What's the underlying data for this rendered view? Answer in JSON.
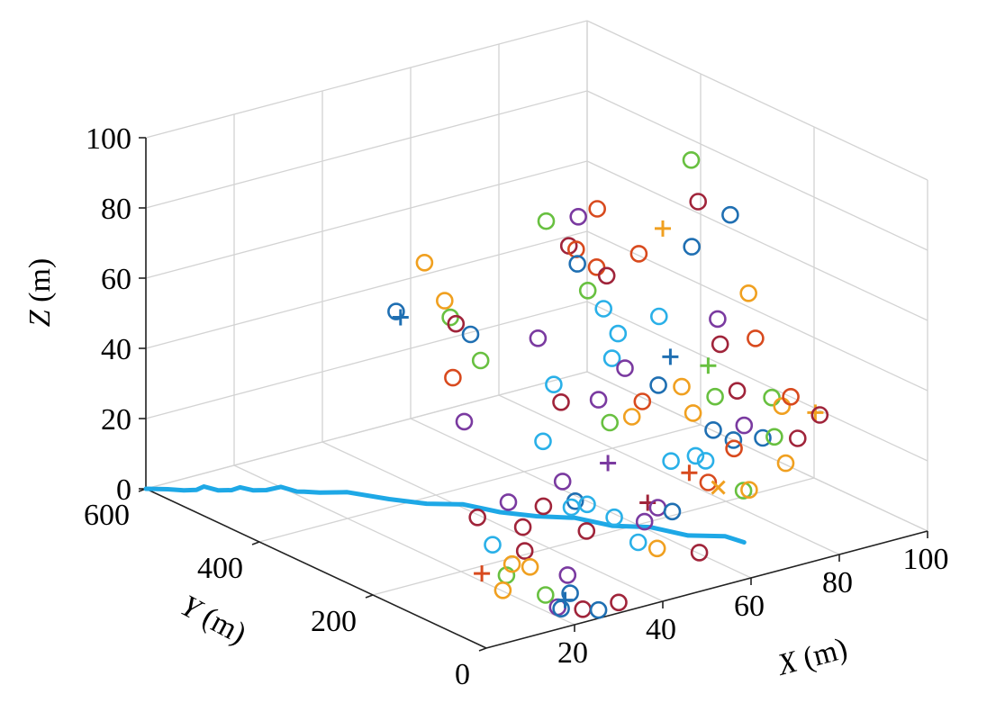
{
  "chart_data": {
    "type": "scatter",
    "title": "",
    "xlabel": "X (m)",
    "ylabel": "Y (m)",
    "zlabel": "Z (m)",
    "xlim": [
      0,
      100
    ],
    "ylim": [
      0,
      600
    ],
    "zlim": [
      0,
      100
    ],
    "xticks": [
      "20",
      "40",
      "60",
      "80",
      "100"
    ],
    "yticks": [
      "0",
      "200",
      "400",
      "600"
    ],
    "zticks": [
      "0",
      "20",
      "40",
      "60",
      "80",
      "100"
    ],
    "grid": true,
    "colors": {
      "blue": "#1f6fb2",
      "orange": "#f0a020",
      "green": "#68c040",
      "purple": "#7a3aa0",
      "red": "#d84a1e",
      "cyan": "#2ab0e8",
      "darkred": "#a0243a",
      "path": "#1ea8e6"
    },
    "series": [
      {
        "name": "Path",
        "kind": "line",
        "color": "path",
        "points": [
          [
            0,
            600,
            0
          ],
          [
            3,
            585,
            0
          ],
          [
            5,
            572,
            0
          ],
          [
            7,
            565,
            0
          ],
          [
            8,
            560,
            1
          ],
          [
            10,
            550,
            0
          ],
          [
            12,
            542,
            0
          ],
          [
            13,
            535,
            1
          ],
          [
            15,
            528,
            0
          ],
          [
            17,
            520,
            0
          ],
          [
            19,
            510,
            1
          ],
          [
            21,
            497,
            0
          ],
          [
            22,
            492,
            0
          ],
          [
            24,
            480,
            0
          ],
          [
            27,
            455,
            1
          ],
          [
            32,
            420,
            0
          ],
          [
            36,
            385,
            0
          ],
          [
            40,
            352,
            1
          ],
          [
            44,
            318,
            0
          ],
          [
            48,
            285,
            0
          ],
          [
            52,
            248,
            1
          ],
          [
            56,
            214,
            0
          ],
          [
            60,
            178,
            1
          ],
          [
            64,
            142,
            0
          ],
          [
            68,
            108,
            1
          ],
          [
            70,
            90,
            0
          ]
        ]
      },
      {
        "name": "Markers",
        "kind": "scatter",
        "points": [
          [
            40,
            470,
            47,
            "o",
            "blue"
          ],
          [
            41,
            470,
            45,
            "+",
            "blue"
          ],
          [
            31,
            350,
            73,
            "o",
            "orange"
          ],
          [
            33,
            330,
            63,
            "o",
            "orange"
          ],
          [
            33,
            320,
            59,
            "o",
            "green"
          ],
          [
            34,
            318,
            57,
            "o",
            "darkred"
          ],
          [
            31,
            300,
            44,
            "o",
            "red"
          ],
          [
            35,
            300,
            55,
            "o",
            "blue"
          ],
          [
            36,
            290,
            48,
            "o",
            "green"
          ],
          [
            31,
            280,
            33,
            "o",
            "purple"
          ],
          [
            25,
            210,
            13,
            "o",
            "darkred"
          ],
          [
            22,
            160,
            10,
            "o",
            "cyan"
          ],
          [
            17,
            140,
            5,
            "+",
            "red"
          ],
          [
            20,
            120,
            5,
            "o",
            "green"
          ],
          [
            21,
            118,
            8,
            "o",
            "orange"
          ],
          [
            17,
            103,
            3,
            "o",
            "orange"
          ],
          [
            32,
            210,
            15,
            "o",
            "purple"
          ],
          [
            34,
            200,
            8,
            "o",
            "darkred"
          ],
          [
            38,
            195,
            13,
            "o",
            "darkred"
          ],
          [
            28,
            150,
            7,
            "o",
            "darkred"
          ],
          [
            26,
            125,
            5,
            "o",
            "orange"
          ],
          [
            25,
            90,
            0,
            "o",
            "green"
          ],
          [
            30,
            90,
            4,
            "o",
            "purple"
          ],
          [
            28,
            70,
            1,
            "o",
            "blue"
          ],
          [
            23,
            53,
            0,
            "o",
            "purple"
          ],
          [
            23,
            47,
            0,
            "o",
            "blue"
          ],
          [
            23,
            40,
            3,
            "+",
            "blue"
          ],
          [
            26,
            32,
            0,
            "o",
            "darkred"
          ],
          [
            28,
            20,
            0,
            "o",
            "blue"
          ],
          [
            30,
            0,
            3,
            "o",
            "darkred"
          ],
          [
            42,
            170,
            15,
            "o",
            "blue"
          ],
          [
            42,
            150,
            8,
            "o",
            "darkred"
          ],
          [
            43,
            200,
            18,
            "o",
            "purple"
          ],
          [
            45,
            250,
            25,
            "o",
            "cyan"
          ],
          [
            45,
            200,
            10,
            "o",
            "cyan"
          ],
          [
            46,
            180,
            12,
            "o",
            "cyan"
          ],
          [
            50,
            270,
            38,
            "o",
            "cyan"
          ],
          [
            49,
            290,
            50,
            "o",
            "purple"
          ],
          [
            51,
            265,
            33,
            "o",
            "darkred"
          ],
          [
            55,
            230,
            35,
            "o",
            "purple"
          ],
          [
            55,
            210,
            30,
            "o",
            "green"
          ],
          [
            52,
            190,
            21,
            "+",
            "purple"
          ],
          [
            47,
            140,
            11,
            "o",
            "cyan"
          ],
          [
            52,
            120,
            15,
            "+",
            "darkred"
          ],
          [
            53,
            110,
            14,
            "o",
            "purple"
          ],
          [
            55,
            100,
            13,
            "o",
            "blue"
          ],
          [
            50,
            110,
            11,
            "o",
            "purple"
          ],
          [
            46,
            90,
            8,
            "o",
            "cyan"
          ],
          [
            49,
            80,
            6,
            "o",
            "orange"
          ],
          [
            56,
            60,
            4,
            "o",
            "darkred"
          ],
          [
            56,
            330,
            78,
            "o",
            "green"
          ],
          [
            62,
            320,
            78,
            "o",
            "purple"
          ],
          [
            65,
            310,
            80,
            "o",
            "red"
          ],
          [
            56,
            290,
            74,
            "o",
            "darkred"
          ],
          [
            57,
            285,
            73,
            "o",
            "red"
          ],
          [
            56,
            275,
            70,
            "o",
            "blue"
          ],
          [
            61,
            280,
            67,
            "o",
            "red"
          ],
          [
            62,
            270,
            65,
            "o",
            "darkred"
          ],
          [
            59,
            280,
            61,
            "o",
            "green"
          ],
          [
            68,
            260,
            70,
            "o",
            "red"
          ],
          [
            60,
            260,
            57,
            "o",
            "cyan"
          ],
          [
            62,
            250,
            50,
            "o",
            "cyan"
          ],
          [
            60,
            245,
            44,
            "o",
            "cyan"
          ],
          [
            61,
            230,
            42,
            "o",
            "purple"
          ],
          [
            60,
            210,
            30,
            "o",
            "orange"
          ],
          [
            63,
            215,
            33,
            "o",
            "red"
          ],
          [
            70,
            240,
            53,
            "o",
            "cyan"
          ],
          [
            70,
            220,
            43,
            "+",
            "blue"
          ],
          [
            66,
            210,
            37,
            "o",
            "blue"
          ],
          [
            70,
            200,
            36,
            "o",
            "orange"
          ],
          [
            70,
            180,
            30,
            "o",
            "orange"
          ],
          [
            72,
            160,
            26,
            "o",
            "blue"
          ],
          [
            75,
            180,
            33,
            "o",
            "green"
          ],
          [
            68,
            160,
            20,
            "o",
            "cyan"
          ],
          [
            69,
            150,
            19,
            "o",
            "cyan"
          ],
          [
            74,
            140,
            24,
            "o",
            "blue"
          ],
          [
            64,
            140,
            18,
            "+",
            "red"
          ],
          [
            67,
            130,
            15,
            "o",
            "red"
          ],
          [
            68,
            120,
            14,
            "x",
            "orange"
          ],
          [
            85,
            300,
            88,
            "o",
            "green"
          ],
          [
            84,
            280,
            78,
            "o",
            "darkred"
          ],
          [
            80,
            260,
            68,
            "o",
            "blue"
          ],
          [
            76,
            280,
            73,
            "+",
            "orange"
          ],
          [
            90,
            270,
            73,
            "o",
            "blue"
          ],
          [
            89,
            230,
            54,
            "o",
            "orange"
          ],
          [
            82,
            230,
            49,
            "o",
            "purple"
          ],
          [
            80,
            210,
            44,
            "o",
            "darkred"
          ],
          [
            88,
            210,
            43,
            "o",
            "red"
          ],
          [
            76,
            200,
            40,
            "+",
            "green"
          ],
          [
            80,
            180,
            33,
            "o",
            "darkred"
          ],
          [
            79,
            160,
            25,
            "o",
            "purple"
          ],
          [
            84,
            150,
            32,
            "o",
            "green"
          ],
          [
            85,
            140,
            30,
            "o",
            "orange"
          ],
          [
            87,
            140,
            32,
            "o",
            "red"
          ],
          [
            80,
            135,
            23,
            "o",
            "blue"
          ],
          [
            82,
            130,
            23,
            "o",
            "green"
          ],
          [
            82,
            110,
            17,
            "o",
            "orange"
          ],
          [
            86,
            120,
            22,
            "o",
            "darkred"
          ],
          [
            90,
            120,
            28,
            "+",
            "orange"
          ],
          [
            91,
            120,
            27,
            "o",
            "darkred"
          ],
          [
            78,
            170,
            18,
            "o",
            "red"
          ],
          [
            75,
            130,
            10,
            "o",
            "green"
          ],
          [
            75,
            120,
            11,
            "o",
            "orange"
          ],
          [
            65,
            180,
            18,
            "o",
            "cyan"
          ]
        ]
      }
    ]
  }
}
